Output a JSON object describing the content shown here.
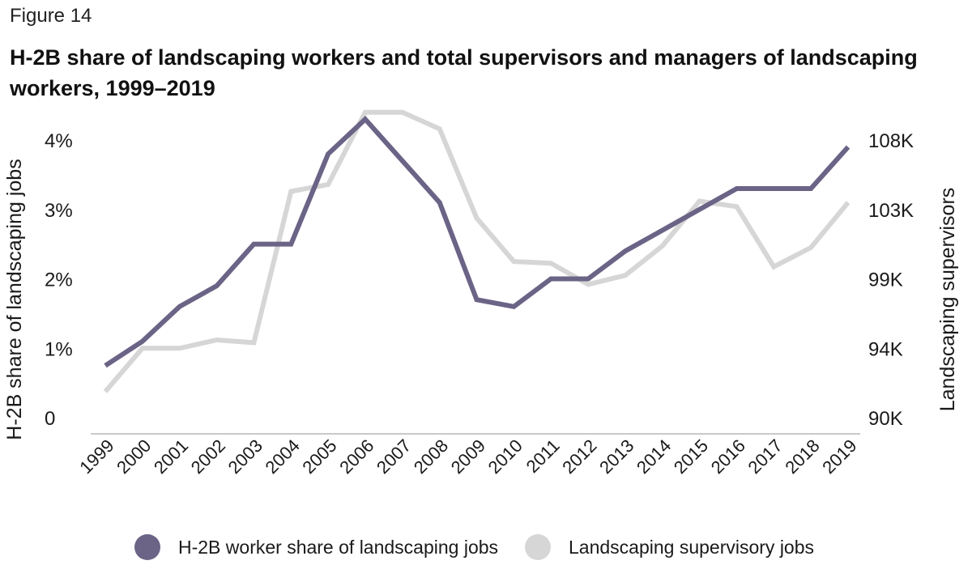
{
  "figure_label": "Figure 14",
  "title": "H-2B share of landscaping workers and total supervisors and managers of landscaping workers, 1999–2019",
  "colors": {
    "h2b": "#6b6486",
    "supervisors": "#d6d6d6",
    "axis": "#c9c9c9",
    "text": "#1a1a1a"
  },
  "legend": {
    "h2b_label": "H-2B worker share of landscaping jobs",
    "supervisors_label": "Landscaping supervisory jobs"
  },
  "chart_data": {
    "type": "line",
    "x": [
      "1999",
      "2000",
      "2001",
      "2002",
      "2003",
      "2004",
      "2005",
      "2006",
      "2007",
      "2008",
      "2009",
      "2010",
      "2011",
      "2012",
      "2013",
      "2014",
      "2015",
      "2016",
      "2017",
      "2018",
      "2019"
    ],
    "left_axis": {
      "label": "H-2B share of landscaping jobs",
      "ticks": [
        0,
        1,
        2,
        3,
        4
      ],
      "tick_labels": [
        "0",
        "1%",
        "2%",
        "3%",
        "4%"
      ],
      "range": [
        0,
        4.3
      ]
    },
    "right_axis": {
      "label": "Landscaping supervisors",
      "ticks": [
        90000,
        94000,
        99000,
        103000,
        108000
      ],
      "tick_labels": [
        "90K",
        "94K",
        "99K",
        "103K",
        "108K"
      ]
    },
    "series": [
      {
        "name": "H-2B worker share of landscaping jobs",
        "axis": "left",
        "values": [
          0.75,
          1.1,
          1.6,
          1.9,
          2.5,
          2.5,
          3.8,
          4.3,
          3.7,
          3.1,
          1.7,
          1.6,
          2.0,
          2.0,
          2.4,
          2.7,
          3.0,
          3.3,
          3.3,
          3.3,
          3.9
        ]
      },
      {
        "name": "Landscaping supervisory jobs",
        "axis": "right",
        "values": [
          91500,
          94000,
          94000,
          94600,
          94400,
          104300,
          104800,
          110000,
          110000,
          108800,
          102500,
          100000,
          99900,
          98600,
          99200,
          100900,
          103600,
          103200,
          99700,
          100800,
          103500
        ]
      }
    ],
    "grid": false
  }
}
